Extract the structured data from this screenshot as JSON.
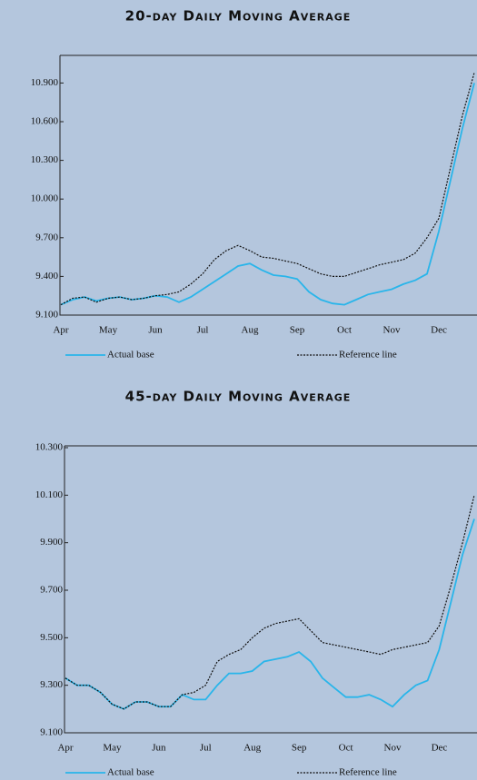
{
  "chart_data": [
    {
      "type": "line",
      "title": "20-day Daily Moving Average",
      "categories": [
        "Apr",
        null,
        null,
        null,
        "May",
        null,
        null,
        null,
        "Jun",
        null,
        null,
        null,
        "Jul",
        null,
        null,
        null,
        "Aug",
        null,
        null,
        null,
        "Sep",
        null,
        null,
        null,
        "Oct",
        null,
        null,
        null,
        "Nov",
        null,
        null,
        null,
        "Dec",
        null,
        null,
        null
      ],
      "series": [
        {
          "name": "Actual base",
          "color": "#29b5ea",
          "dashed": false,
          "values": [
            9.18,
            9.22,
            9.24,
            9.21,
            9.23,
            9.24,
            9.22,
            9.23,
            9.25,
            9.24,
            9.2,
            9.24,
            9.3,
            9.36,
            9.42,
            9.48,
            9.5,
            9.45,
            9.41,
            9.4,
            9.38,
            9.28,
            9.22,
            9.19,
            9.18,
            9.22,
            9.26,
            9.28,
            9.3,
            9.34,
            9.37,
            9.42,
            9.75,
            10.15,
            10.55,
            10.9
          ]
        },
        {
          "name": "Reference line",
          "color": "#111111",
          "dashed": true,
          "values": [
            9.18,
            9.23,
            9.24,
            9.2,
            9.23,
            9.24,
            9.22,
            9.23,
            9.25,
            9.26,
            9.28,
            9.34,
            9.42,
            9.53,
            9.6,
            9.64,
            9.6,
            9.55,
            9.54,
            9.52,
            9.5,
            9.46,
            9.42,
            9.4,
            9.4,
            9.43,
            9.46,
            9.49,
            9.51,
            9.53,
            9.58,
            9.7,
            9.85,
            10.25,
            10.65,
            10.98
          ]
        }
      ],
      "ylim": [
        9.1,
        11.1
      ],
      "yticks": [
        {
          "value": 9.1,
          "label": "9.100"
        },
        {
          "value": 9.4,
          "label": "9.400"
        },
        {
          "value": 9.7,
          "label": "9.700"
        },
        {
          "value": 10.0,
          "label": "10.000"
        },
        {
          "value": 10.3,
          "label": "10.300"
        },
        {
          "value": 10.6,
          "label": "10.600"
        },
        {
          "value": 10.9,
          "label": "10.900"
        }
      ]
    },
    {
      "type": "line",
      "title": "45-day Daily Moving Average",
      "categories": [
        "Apr",
        null,
        null,
        null,
        "May",
        null,
        null,
        null,
        "Jun",
        null,
        null,
        null,
        "Jul",
        null,
        null,
        null,
        "Aug",
        null,
        null,
        null,
        "Sep",
        null,
        null,
        null,
        "Oct",
        null,
        null,
        null,
        "Nov",
        null,
        null,
        null,
        "Dec",
        null,
        null,
        null
      ],
      "series": [
        {
          "name": "Actual base",
          "color": "#29b5ea",
          "dashed": false,
          "values": [
            9.33,
            9.3,
            9.3,
            9.27,
            9.22,
            9.2,
            9.23,
            9.23,
            9.21,
            9.21,
            9.26,
            9.24,
            9.24,
            9.3,
            9.35,
            9.35,
            9.36,
            9.4,
            9.41,
            9.42,
            9.44,
            9.4,
            9.33,
            9.29,
            9.25,
            9.25,
            9.26,
            9.24,
            9.21,
            9.26,
            9.3,
            9.32,
            9.45,
            9.65,
            9.85,
            10.0
          ]
        },
        {
          "name": "Reference line",
          "color": "#111111",
          "dashed": true,
          "values": [
            9.33,
            9.3,
            9.3,
            9.27,
            9.22,
            9.2,
            9.23,
            9.23,
            9.21,
            9.21,
            9.26,
            9.27,
            9.3,
            9.4,
            9.43,
            9.45,
            9.5,
            9.54,
            9.56,
            9.57,
            9.58,
            9.53,
            9.48,
            9.47,
            9.46,
            9.45,
            9.44,
            9.43,
            9.45,
            9.46,
            9.47,
            9.48,
            9.55,
            9.72,
            9.9,
            10.1
          ]
        }
      ],
      "ylim": [
        9.1,
        10.3
      ],
      "yticks": [
        {
          "value": 9.1,
          "label": "9.100"
        },
        {
          "value": 9.3,
          "label": "9.300"
        },
        {
          "value": 9.5,
          "label": "9.500"
        },
        {
          "value": 9.7,
          "label": "9.700"
        },
        {
          "value": 9.9,
          "label": "9.900"
        },
        {
          "value": 10.1,
          "label": "10.100"
        },
        {
          "value": 10.3,
          "label": "10.300"
        }
      ]
    }
  ]
}
